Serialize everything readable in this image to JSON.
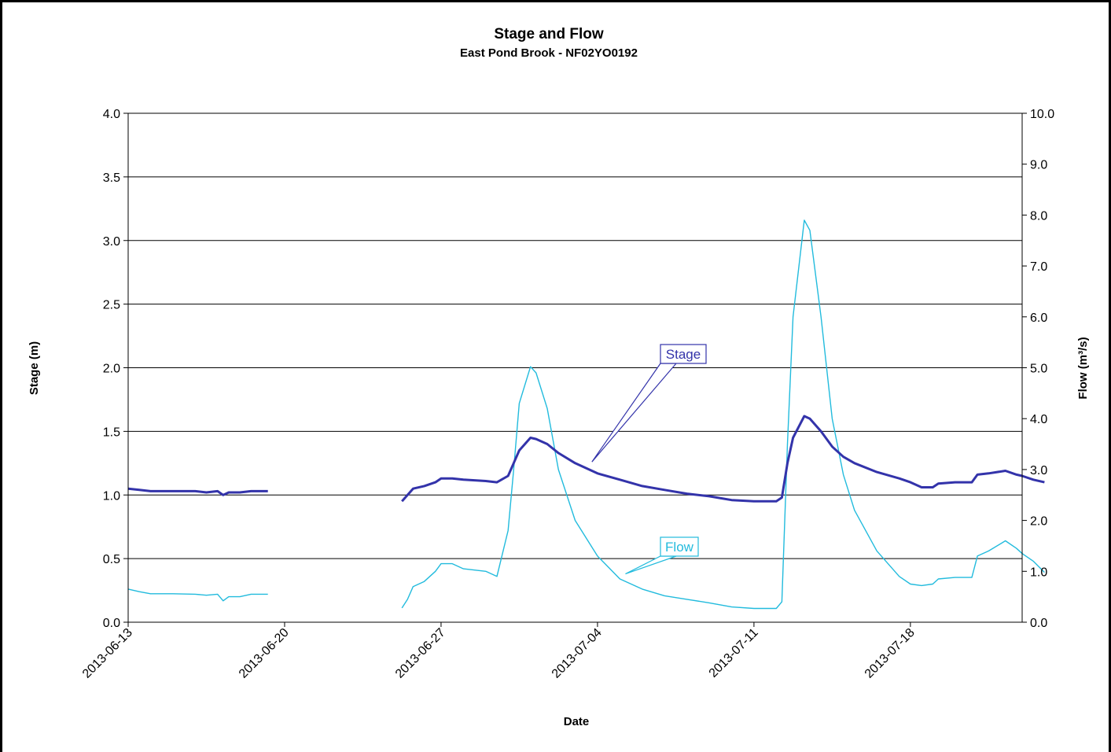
{
  "chart_data": {
    "type": "line",
    "title": "Stage and Flow",
    "subtitle": "East Pond Brook - NF02YO0192",
    "xlabel": "Date",
    "ylabel_left": "Stage (m)",
    "ylabel_right": "Flow (m³/s)",
    "ylim_left": [
      0,
      4
    ],
    "ylim_right": [
      0,
      10
    ],
    "xlim": [
      "2013-06-13",
      "2013-07-23"
    ],
    "grid": "horizontal",
    "x_ticks": [
      "2013-06-13",
      "2013-06-20",
      "2013-06-27",
      "2013-07-04",
      "2013-07-11",
      "2013-07-18"
    ],
    "y_ticks_left": [
      "0.0",
      "0.5",
      "1.0",
      "1.5",
      "2.0",
      "2.5",
      "3.0",
      "3.5",
      "4.0"
    ],
    "y_ticks_right": [
      "0.0",
      "1.0",
      "2.0",
      "3.0",
      "4.0",
      "5.0",
      "6.0",
      "7.0",
      "8.0",
      "9.0",
      "10.0"
    ],
    "series": [
      {
        "name": "Stage",
        "axis": "left",
        "color": "#3333AA",
        "segments": [
          [
            [
              "2013-06-13 00:00",
              1.05
            ],
            [
              "2013-06-13 12:00",
              1.04
            ],
            [
              "2013-06-14 00:00",
              1.03
            ],
            [
              "2013-06-15 00:00",
              1.03
            ],
            [
              "2013-06-16 00:00",
              1.03
            ],
            [
              "2013-06-16 12:00",
              1.02
            ],
            [
              "2013-06-17 00:00",
              1.03
            ],
            [
              "2013-06-17 06:00",
              1.0
            ],
            [
              "2013-06-17 12:00",
              1.02
            ],
            [
              "2013-06-18 00:00",
              1.02
            ],
            [
              "2013-06-18 12:00",
              1.03
            ],
            [
              "2013-06-19 06:00",
              1.03
            ]
          ],
          [
            [
              "2013-06-25 06:00",
              0.95
            ],
            [
              "2013-06-25 12:00",
              1.0
            ],
            [
              "2013-06-25 18:00",
              1.05
            ],
            [
              "2013-06-26 06:00",
              1.07
            ],
            [
              "2013-06-26 18:00",
              1.1
            ],
            [
              "2013-06-27 00:00",
              1.13
            ],
            [
              "2013-06-27 12:00",
              1.13
            ],
            [
              "2013-06-28 00:00",
              1.12
            ],
            [
              "2013-06-29 00:00",
              1.11
            ],
            [
              "2013-06-29 12:00",
              1.1
            ],
            [
              "2013-06-30 00:00",
              1.15
            ],
            [
              "2013-06-30 06:00",
              1.25
            ],
            [
              "2013-06-30 12:00",
              1.35
            ],
            [
              "2013-07-01 00:00",
              1.45
            ],
            [
              "2013-07-01 06:00",
              1.44
            ],
            [
              "2013-07-01 18:00",
              1.4
            ],
            [
              "2013-07-02 06:00",
              1.33
            ],
            [
              "2013-07-03 00:00",
              1.25
            ],
            [
              "2013-07-04 00:00",
              1.17
            ],
            [
              "2013-07-05 00:00",
              1.12
            ],
            [
              "2013-07-06 00:00",
              1.07
            ],
            [
              "2013-07-07 00:00",
              1.04
            ],
            [
              "2013-07-08 00:00",
              1.01
            ],
            [
              "2013-07-09 00:00",
              0.99
            ],
            [
              "2013-07-10 00:00",
              0.96
            ],
            [
              "2013-07-11 00:00",
              0.95
            ],
            [
              "2013-07-12 00:00",
              0.95
            ],
            [
              "2013-07-12 06:00",
              0.98
            ],
            [
              "2013-07-12 12:00",
              1.25
            ],
            [
              "2013-07-12 18:00",
              1.45
            ],
            [
              "2013-07-13 06:00",
              1.62
            ],
            [
              "2013-07-13 12:00",
              1.6
            ],
            [
              "2013-07-14 00:00",
              1.5
            ],
            [
              "2013-07-14 12:00",
              1.38
            ],
            [
              "2013-07-15 00:00",
              1.3
            ],
            [
              "2013-07-15 12:00",
              1.25
            ],
            [
              "2013-07-16 12:00",
              1.18
            ],
            [
              "2013-07-17 12:00",
              1.13
            ],
            [
              "2013-07-18 00:00",
              1.1
            ],
            [
              "2013-07-18 12:00",
              1.06
            ],
            [
              "2013-07-19 00:00",
              1.06
            ],
            [
              "2013-07-19 06:00",
              1.09
            ],
            [
              "2013-07-20 00:00",
              1.1
            ],
            [
              "2013-07-20 18:00",
              1.1
            ],
            [
              "2013-07-21 00:00",
              1.16
            ],
            [
              "2013-07-21 12:00",
              1.17
            ],
            [
              "2013-07-22 06:00",
              1.19
            ],
            [
              "2013-07-22 18:00",
              1.16
            ],
            [
              "2013-07-23 00:00",
              1.15
            ],
            [
              "2013-07-23 12:00",
              1.12
            ],
            [
              "2013-07-24 00:00",
              1.1
            ]
          ]
        ]
      },
      {
        "name": "Flow",
        "axis": "right",
        "color": "#22BBDD",
        "segments": [
          [
            [
              "2013-06-13 00:00",
              0.65
            ],
            [
              "2013-06-13 12:00",
              0.6
            ],
            [
              "2013-06-14 00:00",
              0.56
            ],
            [
              "2013-06-15 00:00",
              0.56
            ],
            [
              "2013-06-16 00:00",
              0.55
            ],
            [
              "2013-06-16 12:00",
              0.53
            ],
            [
              "2013-06-17 00:00",
              0.55
            ],
            [
              "2013-06-17 06:00",
              0.42
            ],
            [
              "2013-06-17 12:00",
              0.5
            ],
            [
              "2013-06-18 00:00",
              0.5
            ],
            [
              "2013-06-18 12:00",
              0.55
            ],
            [
              "2013-06-19 06:00",
              0.55
            ]
          ],
          [
            [
              "2013-06-25 06:00",
              0.28
            ],
            [
              "2013-06-25 12:00",
              0.45
            ],
            [
              "2013-06-25 18:00",
              0.7
            ],
            [
              "2013-06-26 06:00",
              0.8
            ],
            [
              "2013-06-26 18:00",
              1.0
            ],
            [
              "2013-06-27 00:00",
              1.15
            ],
            [
              "2013-06-27 12:00",
              1.15
            ],
            [
              "2013-06-28 00:00",
              1.05
            ],
            [
              "2013-06-29 00:00",
              1.0
            ],
            [
              "2013-06-29 12:00",
              0.9
            ],
            [
              "2013-06-30 00:00",
              1.8
            ],
            [
              "2013-06-30 06:00",
              3.0
            ],
            [
              "2013-06-30 12:00",
              4.3
            ],
            [
              "2013-07-01 00:00",
              5.02
            ],
            [
              "2013-07-01 06:00",
              4.9
            ],
            [
              "2013-07-01 18:00",
              4.2
            ],
            [
              "2013-07-02 06:00",
              3.0
            ],
            [
              "2013-07-03 00:00",
              2.0
            ],
            [
              "2013-07-04 00:00",
              1.3
            ],
            [
              "2013-07-05 00:00",
              0.85
            ],
            [
              "2013-07-06 00:00",
              0.65
            ],
            [
              "2013-07-07 00:00",
              0.52
            ],
            [
              "2013-07-08 00:00",
              0.45
            ],
            [
              "2013-07-09 00:00",
              0.38
            ],
            [
              "2013-07-10 00:00",
              0.3
            ],
            [
              "2013-07-11 00:00",
              0.27
            ],
            [
              "2013-07-12 00:00",
              0.27
            ],
            [
              "2013-07-12 06:00",
              0.4
            ],
            [
              "2013-07-12 12:00",
              3.5
            ],
            [
              "2013-07-12 18:00",
              6.0
            ],
            [
              "2013-07-13 06:00",
              7.9
            ],
            [
              "2013-07-13 12:00",
              7.7
            ],
            [
              "2013-07-14 00:00",
              6.0
            ],
            [
              "2013-07-14 12:00",
              4.0
            ],
            [
              "2013-07-15 00:00",
              2.9
            ],
            [
              "2013-07-15 12:00",
              2.2
            ],
            [
              "2013-07-16 12:00",
              1.4
            ],
            [
              "2013-07-17 12:00",
              0.9
            ],
            [
              "2013-07-18 00:00",
              0.75
            ],
            [
              "2013-07-18 12:00",
              0.72
            ],
            [
              "2013-07-19 00:00",
              0.75
            ],
            [
              "2013-07-19 06:00",
              0.85
            ],
            [
              "2013-07-20 00:00",
              0.88
            ],
            [
              "2013-07-20 18:00",
              0.88
            ],
            [
              "2013-07-21 00:00",
              1.3
            ],
            [
              "2013-07-21 12:00",
              1.4
            ],
            [
              "2013-07-22 06:00",
              1.6
            ],
            [
              "2013-07-22 18:00",
              1.45
            ],
            [
              "2013-07-23 00:00",
              1.35
            ],
            [
              "2013-07-23 12:00",
              1.2
            ],
            [
              "2013-07-24 00:00",
              0.98
            ]
          ]
        ]
      }
    ],
    "annotations": [
      {
        "text": "Stage",
        "series": "Stage"
      },
      {
        "text": "Flow",
        "series": "Flow"
      }
    ]
  }
}
